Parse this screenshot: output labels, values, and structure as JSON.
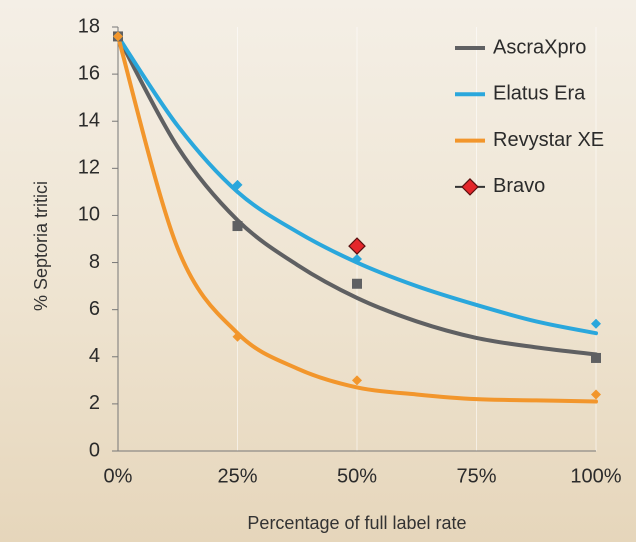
{
  "chart_data": {
    "type": "scatter",
    "x_label": "Percentage of full label rate",
    "y_label": "% Septoria tritici",
    "xlim": [
      0,
      100
    ],
    "ylim": [
      0,
      18
    ],
    "xticks": [
      {
        "value": 0,
        "label": "0%"
      },
      {
        "value": 25,
        "label": "25%"
      },
      {
        "value": 50,
        "label": "50%"
      },
      {
        "value": 75,
        "label": "75%"
      },
      {
        "value": 100,
        "label": "100%"
      }
    ],
    "yticks": [
      0,
      2,
      4,
      6,
      8,
      10,
      12,
      14,
      16,
      18
    ],
    "grid": true,
    "legend": "top-right",
    "series": [
      {
        "name": "AscraXpro",
        "color": "#5f6062",
        "marker": "square",
        "x": [
          0,
          25,
          50,
          100
        ],
        "values": [
          17.6,
          9.55,
          7.1,
          3.95
        ],
        "fit": {
          "x": [
            0,
            12.5,
            25,
            37.5,
            50,
            62.5,
            75,
            87.5,
            100
          ],
          "values": [
            17.6,
            12.9,
            9.8,
            7.9,
            6.5,
            5.5,
            4.8,
            4.4,
            4.1
          ]
        }
      },
      {
        "name": "Elatus Era",
        "color": "#2aa7dc",
        "marker": "diamond",
        "x": [
          0,
          25,
          50,
          100
        ],
        "values": [
          17.6,
          11.3,
          8.15,
          5.4
        ],
        "fit": {
          "x": [
            0,
            12.5,
            25,
            37.5,
            50,
            62.5,
            75,
            87.5,
            100
          ],
          "values": [
            17.6,
            13.8,
            11.0,
            9.3,
            8.0,
            7.0,
            6.2,
            5.5,
            5.0
          ]
        }
      },
      {
        "name": "Revystar XE",
        "color": "#f2962c",
        "marker": "diamond",
        "x": [
          0,
          25,
          50,
          100
        ],
        "values": [
          17.6,
          4.85,
          3.0,
          2.4
        ],
        "fit": {
          "x": [
            0,
            12.5,
            25,
            37.5,
            50,
            62.5,
            75,
            87.5,
            100
          ],
          "values": [
            17.6,
            8.6,
            5.0,
            3.5,
            2.7,
            2.4,
            2.2,
            2.15,
            2.1
          ]
        }
      },
      {
        "name": "Bravo",
        "color": "#e4262a",
        "marker": "big-diamond",
        "x": [
          50
        ],
        "values": [
          8.7
        ]
      }
    ]
  }
}
